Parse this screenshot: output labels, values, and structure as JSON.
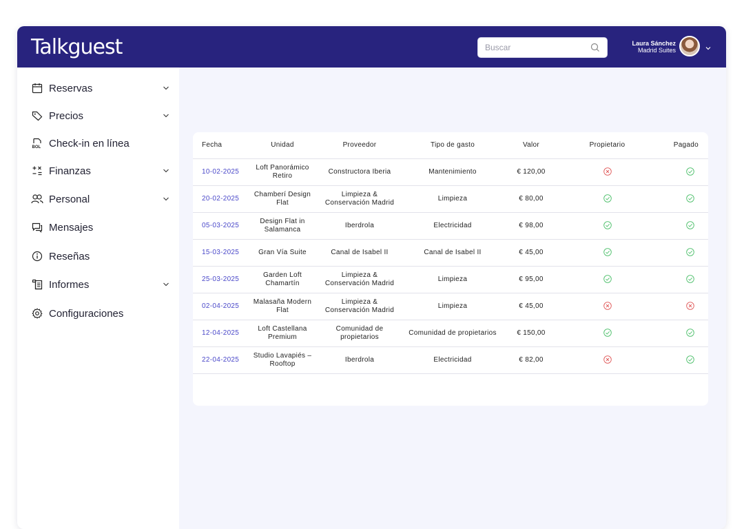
{
  "header": {
    "logo": "Talkguest",
    "search_placeholder": "Buscar",
    "user_name": "Laura Sánchez",
    "user_company": "Madrid Suites"
  },
  "sidebar": {
    "items": [
      {
        "label": "Reservas",
        "icon": "calendar-icon",
        "has_submenu": true
      },
      {
        "label": "Precios",
        "icon": "tag-icon",
        "has_submenu": true
      },
      {
        "label": "Check-in en línea",
        "icon": "bol-document-icon",
        "has_submenu": false
      },
      {
        "label": "Finanzas",
        "icon": "math-operators-icon",
        "has_submenu": true
      },
      {
        "label": "Personal",
        "icon": "users-icon",
        "has_submenu": true
      },
      {
        "label": "Mensajes",
        "icon": "chat-icon",
        "has_submenu": false
      },
      {
        "label": "Reseñas",
        "icon": "info-icon",
        "has_submenu": false
      },
      {
        "label": "Informes",
        "icon": "report-icon",
        "has_submenu": true
      },
      {
        "label": "Configuraciones",
        "icon": "gear-icon",
        "has_submenu": false
      }
    ]
  },
  "table": {
    "columns": [
      "Fecha",
      "Unidad",
      "Proveedor",
      "Tipo de gasto",
      "Valor",
      "Propietario",
      "Pagado"
    ],
    "rows": [
      {
        "fecha": "10-02-2025",
        "unidad": "Loft Panorámico Retiro",
        "proveedor": "Constructora Iberia",
        "tipo": "Mantenimiento",
        "valor": "€ 120,00",
        "propietario": "no",
        "pagado": "yes"
      },
      {
        "fecha": "20-02-2025",
        "unidad": "Chamberí Design Flat",
        "proveedor": "Limpieza & Conservación Madrid",
        "tipo": "Limpieza",
        "valor": "€ 80,00",
        "propietario": "yes",
        "pagado": "yes"
      },
      {
        "fecha": "05-03-2025",
        "unidad": "Design Flat in Salamanca",
        "proveedor": "Iberdrola",
        "tipo": "Electricidad",
        "valor": "€ 98,00",
        "propietario": "yes",
        "pagado": "yes"
      },
      {
        "fecha": "15-03-2025",
        "unidad": "Gran Vía Suite",
        "proveedor": "Canal de Isabel II",
        "tipo": "Canal de Isabel II",
        "valor": "€ 45,00",
        "propietario": "yes",
        "pagado": "yes"
      },
      {
        "fecha": "25-03-2025",
        "unidad": "Garden Loft Chamartín",
        "proveedor": "Limpieza & Conservación Madrid",
        "tipo": "Limpieza",
        "valor": "€ 95,00",
        "propietario": "yes",
        "pagado": "yes"
      },
      {
        "fecha": "02-04-2025",
        "unidad": "Malasaña Modern Flat",
        "proveedor": "Limpieza & Conservación Madrid",
        "tipo": "Limpieza",
        "valor": "€ 45,00",
        "propietario": "no",
        "pagado": "no"
      },
      {
        "fecha": "12-04-2025",
        "unidad": "Loft Castellana Premium",
        "proveedor": "Comunidad de propietarios",
        "tipo": "Comunidad de propietarios",
        "valor": "€ 150,00",
        "propietario": "yes",
        "pagado": "yes"
      },
      {
        "fecha": "22-04-2025",
        "unidad": "Studio Lavapiés – Rooftop",
        "proveedor": "Iberdrola",
        "tipo": "Electricidad",
        "valor": "€ 82,00",
        "propietario": "no",
        "pagado": "yes"
      }
    ]
  },
  "colors": {
    "header_bg": "#28237e",
    "date_link": "#4a48c9",
    "status_yes": "#4cbf6a",
    "status_no": "#e05a5a"
  }
}
